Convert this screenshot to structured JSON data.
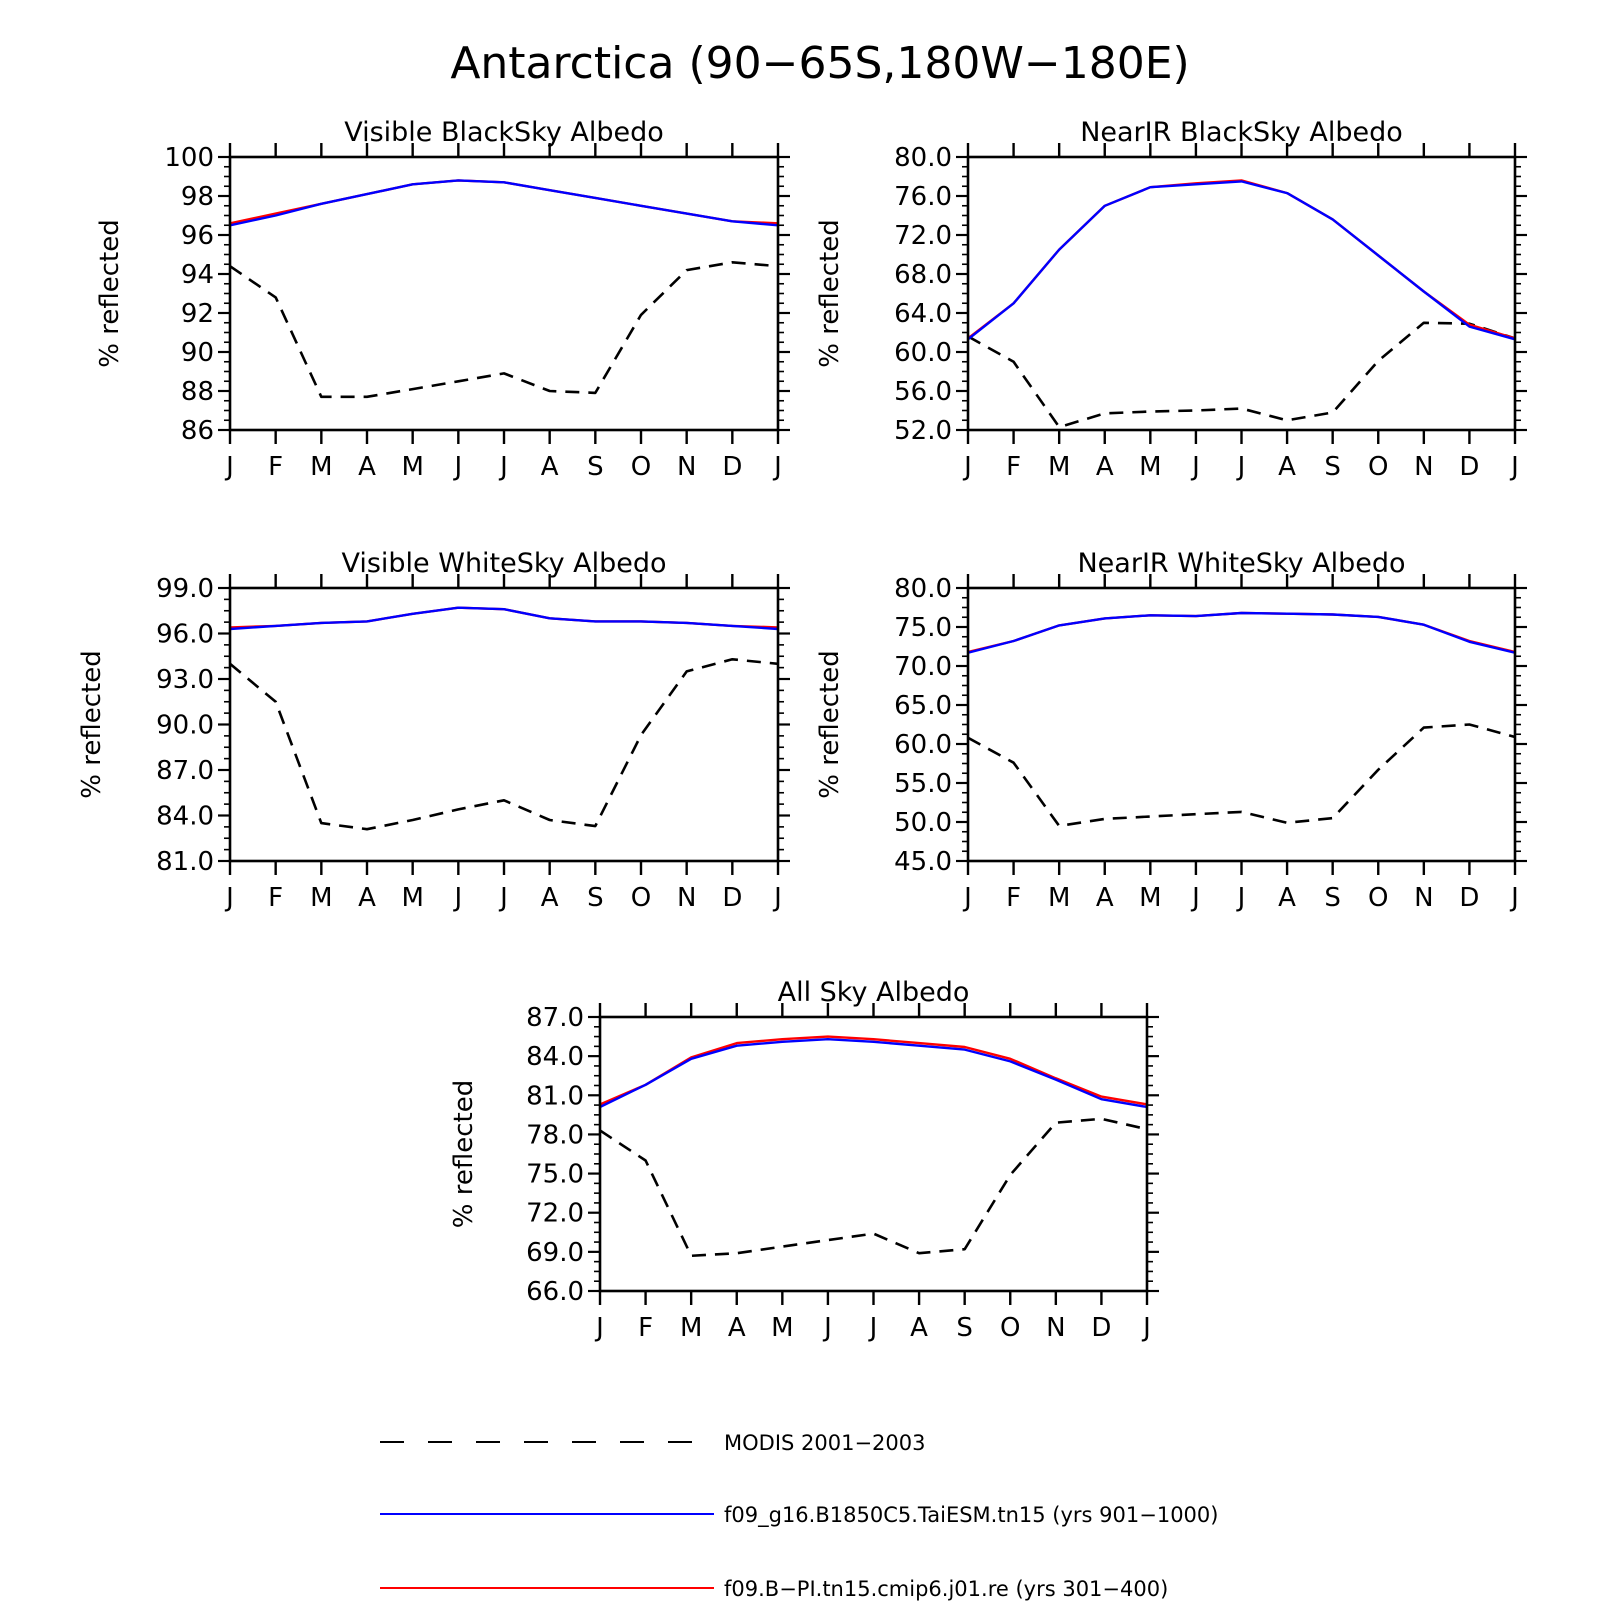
{
  "title": "Antarctica (90−65S,180W−180E)",
  "colors": {
    "obs": "#000000",
    "case1": "#0000ff",
    "case2": "#ff0000"
  },
  "legend": [
    {
      "label": "MODIS 2001−2003",
      "color": "#000000",
      "dash": true
    },
    {
      "label": "f09_g16.B1850C5.TaiESM.tn15 (yrs 901−1000)",
      "color": "#0000ff",
      "dash": false
    },
    {
      "label": "f09.B−PI.tn15.cmip6.j01.re (yrs 301−400)",
      "color": "#ff0000",
      "dash": false
    }
  ],
  "chart_data": [
    {
      "type": "line",
      "title": "Visible BlackSky Albedo",
      "ylabel": "% reflected",
      "categories": [
        "J",
        "F",
        "M",
        "A",
        "M",
        "J",
        "J",
        "A",
        "S",
        "O",
        "N",
        "D",
        "J"
      ],
      "ylim": [
        86,
        100
      ],
      "yticks": [
        86,
        88,
        90,
        92,
        94,
        96,
        98,
        100
      ],
      "ytick_labels": [
        "86",
        "88",
        "90",
        "92",
        "94",
        "96",
        "98",
        "100"
      ],
      "series": [
        {
          "name": "MODIS 2001−2003",
          "values": [
            94.4,
            92.8,
            87.7,
            87.7,
            88.1,
            88.5,
            88.9,
            88.0,
            87.9,
            91.9,
            94.2,
            94.6,
            94.4
          ]
        },
        {
          "name": "f09_g16.B1850C5.TaiESM.tn15 (yrs 901−1000)",
          "values": [
            96.5,
            97.0,
            97.6,
            98.1,
            98.6,
            98.8,
            98.7,
            98.3,
            97.9,
            97.5,
            97.1,
            96.7,
            96.5
          ]
        },
        {
          "name": "f09.B−PI.tn15.cmip6.j01.re (yrs 301−400)",
          "values": [
            96.6,
            97.1,
            97.6,
            98.1,
            98.6,
            98.8,
            98.7,
            98.3,
            97.9,
            97.5,
            97.1,
            96.7,
            96.6
          ]
        }
      ]
    },
    {
      "type": "line",
      "title": "NearIR BlackSky Albedo",
      "ylabel": "% reflected",
      "categories": [
        "J",
        "F",
        "M",
        "A",
        "M",
        "J",
        "J",
        "A",
        "S",
        "O",
        "N",
        "D",
        "J"
      ],
      "ylim": [
        52,
        80
      ],
      "yticks": [
        52,
        56,
        60,
        64,
        68,
        72,
        76,
        80
      ],
      "ytick_labels": [
        "52.0",
        "56.0",
        "60.0",
        "64.0",
        "68.0",
        "72.0",
        "76.0",
        "80.0"
      ],
      "series": [
        {
          "name": "MODIS 2001−2003",
          "values": [
            61.6,
            59.0,
            52.3,
            53.7,
            53.9,
            54.0,
            54.2,
            53.0,
            53.8,
            59.1,
            63.0,
            62.9,
            61.4
          ]
        },
        {
          "name": "f09_g16.B1850C5.TaiESM.tn15 (yrs 901−1000)",
          "values": [
            61.3,
            65.0,
            70.5,
            75.0,
            76.9,
            77.2,
            77.5,
            76.3,
            73.6,
            69.9,
            66.2,
            62.6,
            61.3
          ]
        },
        {
          "name": "f09.B−PI.tn15.cmip6.j01.re (yrs 301−400)",
          "values": [
            61.4,
            65.0,
            70.5,
            75.0,
            76.9,
            77.3,
            77.6,
            76.3,
            73.6,
            69.9,
            66.2,
            62.8,
            61.4
          ]
        }
      ]
    },
    {
      "type": "line",
      "title": "Visible WhiteSky Albedo",
      "ylabel": "% reflected",
      "categories": [
        "J",
        "F",
        "M",
        "A",
        "M",
        "J",
        "J",
        "A",
        "S",
        "O",
        "N",
        "D",
        "J"
      ],
      "ylim": [
        81,
        99
      ],
      "yticks": [
        81,
        84,
        87,
        90,
        93,
        96,
        99
      ],
      "ytick_labels": [
        "81.0",
        "84.0",
        "87.0",
        "90.0",
        "93.0",
        "96.0",
        "99.0"
      ],
      "series": [
        {
          "name": "MODIS 2001−2003",
          "values": [
            94.0,
            91.5,
            83.5,
            83.1,
            83.7,
            84.4,
            85.0,
            83.7,
            83.3,
            89.3,
            93.5,
            94.3,
            94.0
          ]
        },
        {
          "name": "f09_g16.B1850C5.TaiESM.tn15 (yrs 901−1000)",
          "values": [
            96.3,
            96.5,
            96.7,
            96.8,
            97.3,
            97.7,
            97.6,
            97.0,
            96.8,
            96.8,
            96.7,
            96.5,
            96.3
          ]
        },
        {
          "name": "f09.B−PI.tn15.cmip6.j01.re (yrs 301−400)",
          "values": [
            96.4,
            96.5,
            96.7,
            96.8,
            97.3,
            97.7,
            97.6,
            97.0,
            96.8,
            96.8,
            96.7,
            96.5,
            96.4
          ]
        }
      ]
    },
    {
      "type": "line",
      "title": "NearIR WhiteSky Albedo",
      "ylabel": "% reflected",
      "categories": [
        "J",
        "F",
        "M",
        "A",
        "M",
        "J",
        "J",
        "A",
        "S",
        "O",
        "N",
        "D",
        "J"
      ],
      "ylim": [
        45,
        80
      ],
      "yticks": [
        45,
        50,
        55,
        60,
        65,
        70,
        75,
        80
      ],
      "ytick_labels": [
        "45.0",
        "50.0",
        "55.0",
        "60.0",
        "65.0",
        "70.0",
        "75.0",
        "80.0"
      ],
      "series": [
        {
          "name": "MODIS 2001−2003",
          "values": [
            60.8,
            57.6,
            49.5,
            50.4,
            50.7,
            51.0,
            51.3,
            49.9,
            50.5,
            56.7,
            62.1,
            62.5,
            60.9
          ]
        },
        {
          "name": "f09_g16.B1850C5.TaiESM.tn15 (yrs 901−1000)",
          "values": [
            71.7,
            73.2,
            75.2,
            76.1,
            76.5,
            76.4,
            76.8,
            76.7,
            76.6,
            76.3,
            75.3,
            73.1,
            71.7
          ]
        },
        {
          "name": "f09.B−PI.tn15.cmip6.j01.re (yrs 301−400)",
          "values": [
            71.8,
            73.2,
            75.2,
            76.1,
            76.5,
            76.4,
            76.8,
            76.7,
            76.6,
            76.3,
            75.3,
            73.2,
            71.8
          ]
        }
      ]
    },
    {
      "type": "line",
      "title": "All Sky Albedo",
      "ylabel": "% reflected",
      "categories": [
        "J",
        "F",
        "M",
        "A",
        "M",
        "J",
        "J",
        "A",
        "S",
        "O",
        "N",
        "D",
        "J"
      ],
      "ylim": [
        66,
        87
      ],
      "yticks": [
        66,
        69,
        72,
        75,
        78,
        81,
        84,
        87
      ],
      "ytick_labels": [
        "66.0",
        "69.0",
        "72.0",
        "75.0",
        "78.0",
        "81.0",
        "84.0",
        "87.0"
      ],
      "series": [
        {
          "name": "MODIS 2001−2003",
          "values": [
            78.3,
            76.0,
            68.7,
            68.9,
            69.4,
            69.9,
            70.4,
            68.9,
            69.2,
            74.9,
            78.9,
            79.2,
            78.4
          ]
        },
        {
          "name": "f09_g16.B1850C5.TaiESM.tn15 (yrs 901−1000)",
          "values": [
            80.1,
            81.8,
            83.8,
            84.8,
            85.1,
            85.3,
            85.1,
            84.8,
            84.5,
            83.6,
            82.2,
            80.7,
            80.1
          ]
        },
        {
          "name": "f09.B−PI.tn15.cmip6.j01.re (yrs 301−400)",
          "values": [
            80.3,
            81.8,
            83.9,
            85.0,
            85.3,
            85.5,
            85.3,
            85.0,
            84.7,
            83.8,
            82.3,
            80.9,
            80.3
          ]
        }
      ]
    }
  ]
}
